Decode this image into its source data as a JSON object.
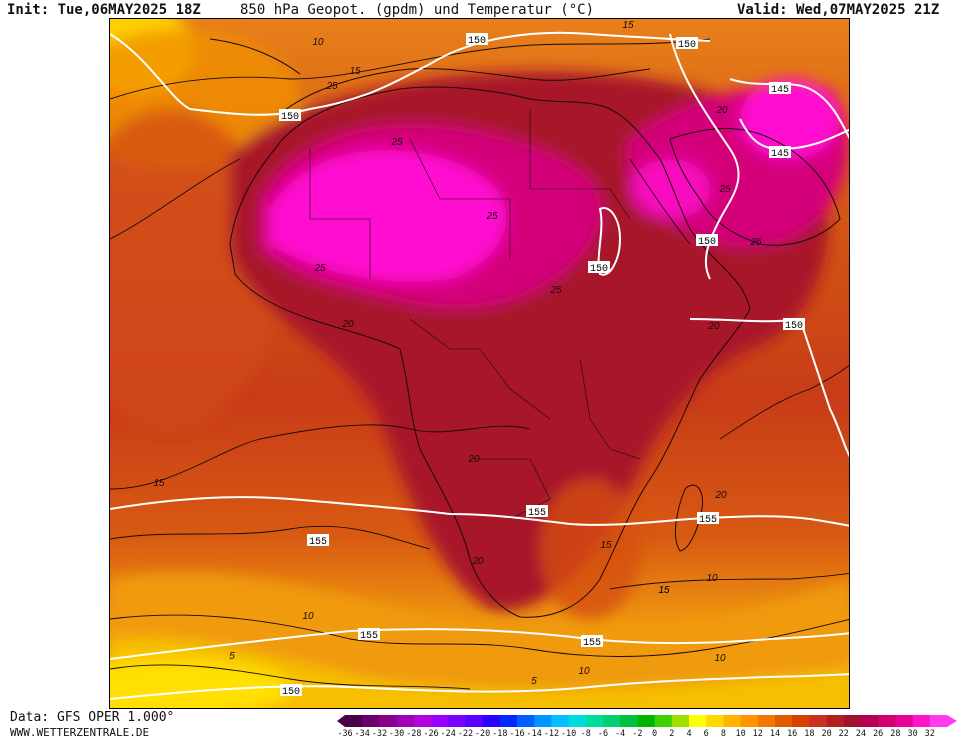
{
  "header": {
    "init": "Init: Tue,06MAY2025 18Z",
    "title": "850 hPa Geopot. (gpdm) und Temperatur (°C)",
    "valid": "Valid: Wed,07MAY2025 21Z"
  },
  "footer": {
    "data_source": "Data: GFS OPER 1.000°",
    "website": "WWW.WETTERZENTRALE.DE"
  },
  "geopotential_labels": [
    "150",
    "150",
    "150",
    "145",
    "145",
    "150",
    "150",
    "150",
    "155",
    "155",
    "155",
    "155",
    "155",
    "150"
  ],
  "temperature_labels": [
    "10",
    "15",
    "25",
    "25",
    "20",
    "25",
    "25",
    "15",
    "20",
    "25",
    "25",
    "25",
    "20",
    "20",
    "20",
    "15",
    "15",
    "20",
    "15",
    "10",
    "10",
    "15",
    "10",
    "5",
    "5",
    "10"
  ],
  "legend": {
    "ticks": [
      "-36",
      "-34",
      "-32",
      "-30",
      "-28",
      "-26",
      "-24",
      "-22",
      "-20",
      "-18",
      "-16",
      "-14",
      "-12",
      "-10",
      "-8",
      "-6",
      "-4",
      "-2",
      "0",
      "2",
      "4",
      "6",
      "8",
      "10",
      "12",
      "14",
      "16",
      "18",
      "20",
      "22",
      "24",
      "26",
      "28",
      "30",
      "32"
    ],
    "colors": [
      "#4a004a",
      "#6b006b",
      "#8b008b",
      "#a000b4",
      "#b400dc",
      "#9a00ff",
      "#7a00ff",
      "#5a00ff",
      "#2a00ff",
      "#0028ff",
      "#0060ff",
      "#0096ff",
      "#00c0ff",
      "#00dcdc",
      "#00dca0",
      "#00d070",
      "#00c040",
      "#00b400",
      "#40d000",
      "#a0e000",
      "#ffff00",
      "#ffd800",
      "#ffb400",
      "#ff9600",
      "#f07800",
      "#e05a00",
      "#d84000",
      "#c83020",
      "#b42020",
      "#a01030",
      "#b40050",
      "#d0006e",
      "#e60096",
      "#ff14c8",
      "#ff3cf0"
    ]
  }
}
